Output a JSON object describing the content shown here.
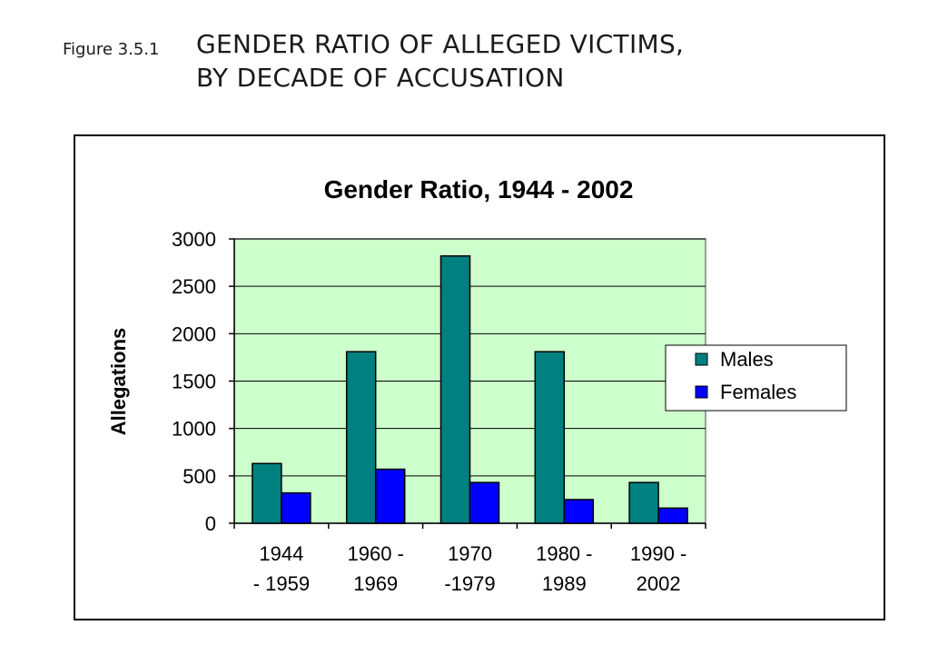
{
  "figure": {
    "label": "Figure 3.5.1",
    "title_line1": "GENDER RATIO OF ALLEGED VICTIMS,",
    "title_line2": "BY DECADE OF ACCUSATION"
  },
  "colors": {
    "males": "#008080",
    "females": "#0000ff",
    "plot_bg": "#ccffcc",
    "grid": "#000000"
  },
  "chart_data": {
    "type": "bar",
    "title": "Gender Ratio, 1944 - 2002",
    "xlabel": "",
    "ylabel": "Allegations",
    "ylim": [
      0,
      3000
    ],
    "yticks": [
      0,
      500,
      1000,
      1500,
      2000,
      2500,
      3000
    ],
    "ytick_labels": [
      "0",
      "500",
      "1000",
      "1500",
      "2000",
      "2500",
      "3000"
    ],
    "grid": true,
    "legend_position": "right",
    "categories": [
      [
        "1944",
        "- 1959"
      ],
      [
        "1960 -",
        "1969"
      ],
      [
        "1970",
        "-1979"
      ],
      [
        "1980 -",
        "1989"
      ],
      [
        "1990 -",
        "2002"
      ]
    ],
    "series": [
      {
        "name": "Males",
        "values": [
          630,
          1810,
          2820,
          1810,
          430
        ]
      },
      {
        "name": "Females",
        "values": [
          320,
          570,
          430,
          250,
          160
        ]
      }
    ]
  }
}
